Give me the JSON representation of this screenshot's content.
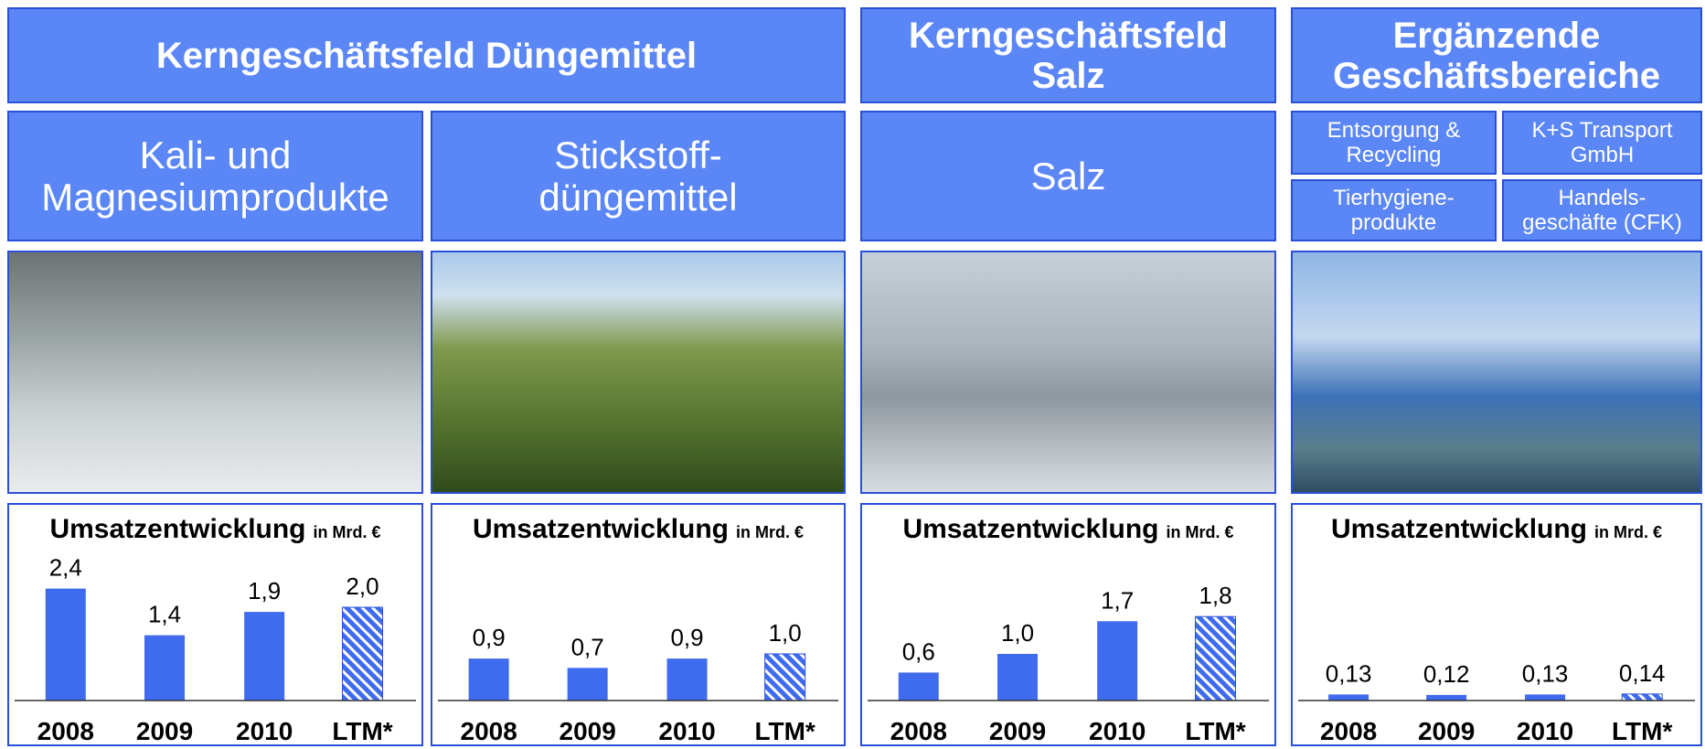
{
  "headers": {
    "top": [
      "Kerngeschäftsfeld Düngemittel",
      "Kerngeschäftsfeld\nSalz",
      "Ergänzende\nGeschäftsbereiche"
    ],
    "sub": [
      "Kali- und\nMagnesiumprodukte",
      "Stickstoff-\ndüngemittel",
      "Salz"
    ],
    "small": [
      "Entsorgung &\nRecycling",
      "K+S Transport\nGmbH",
      "Tierhygiene-\nprodukte",
      "Handels-\ngeschäfte (CFK)"
    ]
  },
  "chart_data": [
    {
      "type": "bar",
      "title": "Umsatzentwicklung",
      "unit": "in Mrd. €",
      "categories": [
        "2008",
        "2009",
        "2010",
        "LTM*"
      ],
      "values": [
        2.4,
        1.4,
        1.9,
        2.0
      ],
      "value_labels": [
        "2,4",
        "1,4",
        "1,9",
        "2,0"
      ],
      "hatched": [
        false,
        false,
        false,
        true
      ],
      "color": "#3f6bef"
    },
    {
      "type": "bar",
      "title": "Umsatzentwicklung",
      "unit": "in Mrd. €",
      "categories": [
        "2008",
        "2009",
        "2010",
        "LTM*"
      ],
      "values": [
        0.9,
        0.7,
        0.9,
        1.0
      ],
      "value_labels": [
        "0,9",
        "0,7",
        "0,9",
        "1,0"
      ],
      "hatched": [
        false,
        false,
        false,
        true
      ],
      "color": "#3f6bef"
    },
    {
      "type": "bar",
      "title": "Umsatzentwicklung",
      "unit": "in Mrd. €",
      "categories": [
        "2008",
        "2009",
        "2010",
        "LTM*"
      ],
      "values": [
        0.6,
        1.0,
        1.7,
        1.8
      ],
      "value_labels": [
        "0,6",
        "1,0",
        "1,7",
        "1,8"
      ],
      "hatched": [
        false,
        false,
        false,
        true
      ],
      "color": "#3f6bef"
    },
    {
      "type": "bar",
      "title": "Umsatzentwicklung",
      "unit": "in Mrd. €",
      "categories": [
        "2008",
        "2009",
        "2010",
        "LTM*"
      ],
      "values": [
        0.13,
        0.12,
        0.13,
        0.14
      ],
      "value_labels": [
        "0,13",
        "0,12",
        "0,13",
        "0,14"
      ],
      "hatched": [
        false,
        false,
        false,
        true
      ],
      "color": "#3f6bef"
    }
  ]
}
